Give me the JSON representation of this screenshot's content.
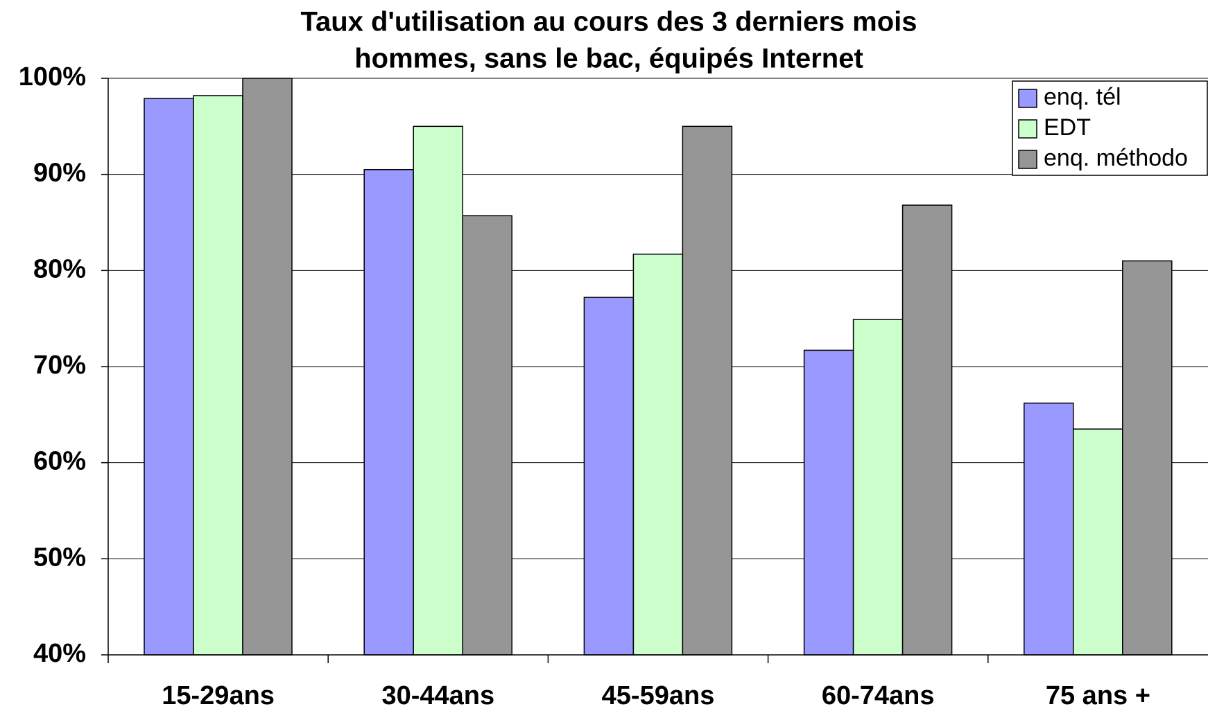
{
  "chart_data": {
    "type": "bar",
    "title": "Taux d'utilisation au cours des 3 derniers mois",
    "subtitle": "hommes, sans le bac, équipés Internet",
    "categories": [
      "15-29ans",
      "30-44ans",
      "45-59ans",
      "60-74ans",
      "75 ans +"
    ],
    "series": [
      {
        "name": "enq. tél",
        "color": "#9999ff",
        "values": [
          97.9,
          90.5,
          77.2,
          71.7,
          66.2
        ]
      },
      {
        "name": "EDT",
        "color": "#ccffcc",
        "values": [
          98.2,
          95.0,
          81.7,
          74.9,
          63.5
        ]
      },
      {
        "name": "enq. méthodo",
        "color": "#969696",
        "values": [
          100,
          85.7,
          95.0,
          86.8,
          81.0
        ]
      }
    ],
    "ylim": [
      40,
      100
    ],
    "yticks": [
      {
        "value": 40,
        "label": "40%"
      },
      {
        "value": 50,
        "label": "50%"
      },
      {
        "value": 60,
        "label": "60%"
      },
      {
        "value": 70,
        "label": "70%"
      },
      {
        "value": 80,
        "label": "80%"
      },
      {
        "value": 90,
        "label": "90%"
      },
      {
        "value": 100,
        "label": "100%"
      }
    ],
    "grid": true,
    "legend": "top-right"
  }
}
